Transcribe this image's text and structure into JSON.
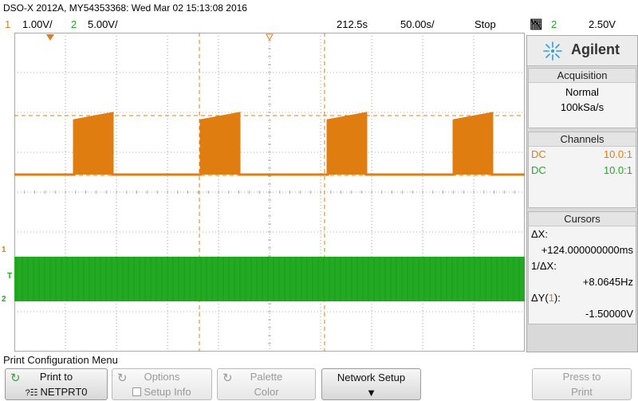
{
  "title": "DSO-X 2012A, MY54353368: Wed Mar 02 15:13:08 2016",
  "status": {
    "ch1_num": "1",
    "ch1_scale": "1.00V/",
    "ch2_num": "2",
    "ch2_scale": "5.00V/",
    "time_delay": "212.5s",
    "time_scale": "50.00s/",
    "run_state": "Stop",
    "trigger_icon": "falling-edge-trigger-icon",
    "trigger_source": "2",
    "trigger_level": "2.50V"
  },
  "brand": {
    "name": "Agilent",
    "logo_icon": "agilent-spark-icon"
  },
  "acquisition": {
    "title": "Acquisition",
    "mode": "Normal",
    "rate": "100kSa/s"
  },
  "channels": {
    "title": "Channels",
    "rows": [
      {
        "coupling": "DC",
        "probe": "10.0:1",
        "color": "#e07d10"
      },
      {
        "coupling": "DC",
        "probe": "10.0:1",
        "color": "#22aa22"
      }
    ]
  },
  "cursors": {
    "title": "Cursors",
    "dx_label": "ΔX:",
    "dx_value": "+124.000000000ms",
    "inv_dx_label": "1/ΔX:",
    "inv_dx_value": "+8.0645Hz",
    "dy_label_prefix": "ΔY(",
    "dy_label_channel": "1",
    "dy_label_suffix": "):",
    "dy_value": "-1.50000V"
  },
  "markers": {
    "ch1": "1",
    "trigger": "T",
    "ch2": "2"
  },
  "menu": {
    "label": "Print Configuration Menu",
    "softkeys": [
      {
        "line1": "Print to",
        "line2": "NETPRT0",
        "enabled": true
      },
      {
        "line1": "Options",
        "line2": "Setup Info",
        "enabled": false
      },
      {
        "line1": "Palette",
        "line2": "Color",
        "enabled": false
      },
      {
        "line1": "Network Setup",
        "line2": "",
        "enabled": true
      },
      {
        "line1": "Press to",
        "line2": "Print",
        "enabled": false
      }
    ]
  },
  "colors": {
    "ch1": "#e07d10",
    "ch2": "#22aa22",
    "grid": "#aaaaaa",
    "cursor": "#e07d10"
  }
}
